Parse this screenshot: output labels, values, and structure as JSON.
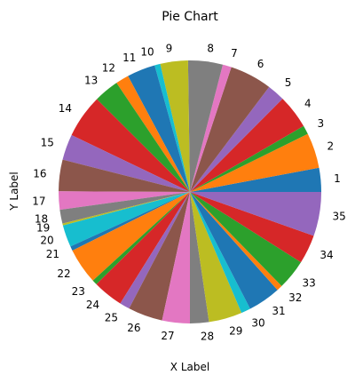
{
  "chart_data": {
    "type": "pie",
    "title": "Pie Chart",
    "xlabel": "X Label",
    "ylabel": "Y Label",
    "start_angle_deg": 0,
    "direction": "counterclockwise",
    "colors": [
      "#1f77b4",
      "#ff7f0e",
      "#2ca02c",
      "#d62728",
      "#9467bd",
      "#8c564b",
      "#e377c2",
      "#7f7f7f",
      "#bcbd22",
      "#17becf"
    ],
    "labels": [
      "1",
      "2",
      "3",
      "4",
      "5",
      "6",
      "7",
      "8",
      "9",
      "10",
      "11",
      "12",
      "13",
      "14",
      "15",
      "16",
      "17",
      "18",
      "19",
      "20",
      "21",
      "22",
      "23",
      "24",
      "25",
      "26",
      "27",
      "28",
      "29",
      "30",
      "31",
      "32",
      "33",
      "34",
      "35"
    ],
    "values": [
      3.8,
      5.6,
      1.4,
      5.4,
      2.8,
      6.7,
      1.4,
      5.5,
      4.4,
      0.9,
      4.5,
      2.1,
      4.0,
      6.9,
      4.1,
      5.0,
      2.9,
      2.2,
      0.3,
      3.5,
      0.7,
      5.7,
      0.8,
      4.8,
      1.6,
      5.5,
      4.4,
      3.0,
      5.3,
      1.5,
      5.2,
      0.9,
      4.8,
      4.6,
      7.0
    ]
  }
}
